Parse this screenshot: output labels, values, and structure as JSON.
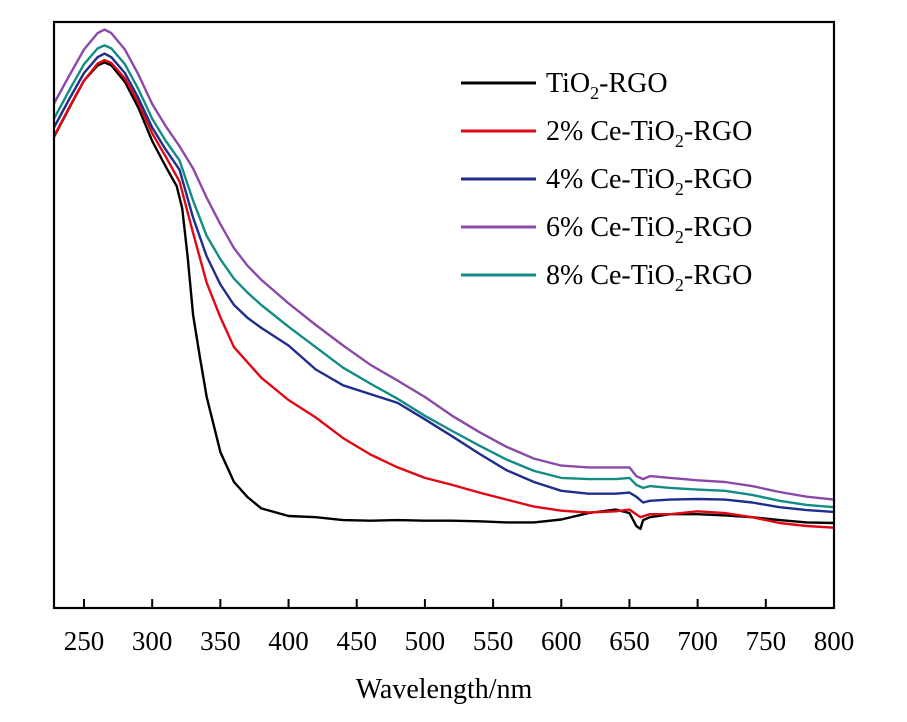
{
  "chart_data": {
    "type": "line",
    "xlabel": "Wavelength/nm",
    "ylabel": "",
    "xlim": [
      228,
      800
    ],
    "ylim": [
      0,
      1
    ],
    "xticks": [
      250,
      300,
      350,
      400,
      450,
      500,
      550,
      600,
      650,
      700,
      750,
      800
    ],
    "xtick_labels": [
      "250",
      "300",
      "350",
      "400",
      "450",
      "500",
      "550",
      "600",
      "650",
      "700",
      "750",
      "800"
    ],
    "y_tick_labels_shown": false,
    "grid": false,
    "legend_position": "top-right",
    "series": [
      {
        "name": "TiO2-RGO",
        "label_main": "TiO",
        "label_sub": "2",
        "label_tail": "-RGO",
        "color": "#000000",
        "points": [
          [
            228,
            0.804
          ],
          [
            240,
            0.857
          ],
          [
            250,
            0.9
          ],
          [
            260,
            0.926
          ],
          [
            265,
            0.931
          ],
          [
            270,
            0.926
          ],
          [
            280,
            0.898
          ],
          [
            290,
            0.853
          ],
          [
            300,
            0.797
          ],
          [
            310,
            0.753
          ],
          [
            318,
            0.72
          ],
          [
            322,
            0.682
          ],
          [
            326,
            0.6
          ],
          [
            330,
            0.5
          ],
          [
            335,
            0.428
          ],
          [
            340,
            0.36
          ],
          [
            350,
            0.266
          ],
          [
            360,
            0.215
          ],
          [
            370,
            0.189
          ],
          [
            380,
            0.17
          ],
          [
            400,
            0.157
          ],
          [
            420,
            0.155
          ],
          [
            440,
            0.15
          ],
          [
            460,
            0.149
          ],
          [
            480,
            0.15
          ],
          [
            500,
            0.149
          ],
          [
            520,
            0.149
          ],
          [
            540,
            0.148
          ],
          [
            560,
            0.146
          ],
          [
            580,
            0.146
          ],
          [
            600,
            0.151
          ],
          [
            620,
            0.162
          ],
          [
            640,
            0.168
          ],
          [
            650,
            0.162
          ],
          [
            655,
            0.14
          ],
          [
            658,
            0.135
          ],
          [
            660,
            0.15
          ],
          [
            665,
            0.155
          ],
          [
            680,
            0.16
          ],
          [
            700,
            0.16
          ],
          [
            720,
            0.158
          ],
          [
            740,
            0.155
          ],
          [
            760,
            0.15
          ],
          [
            780,
            0.146
          ],
          [
            800,
            0.145
          ]
        ]
      },
      {
        "name": "2% Ce-TiO2-RGO",
        "label_main": "2% Ce-TiO",
        "label_sub": "2",
        "label_tail": "-RGO",
        "color": "#e30613",
        "points": [
          [
            228,
            0.805
          ],
          [
            240,
            0.858
          ],
          [
            250,
            0.9
          ],
          [
            260,
            0.929
          ],
          [
            265,
            0.935
          ],
          [
            270,
            0.93
          ],
          [
            280,
            0.904
          ],
          [
            290,
            0.862
          ],
          [
            300,
            0.81
          ],
          [
            310,
            0.77
          ],
          [
            320,
            0.728
          ],
          [
            330,
            0.64
          ],
          [
            340,
            0.555
          ],
          [
            350,
            0.496
          ],
          [
            360,
            0.445
          ],
          [
            380,
            0.393
          ],
          [
            400,
            0.355
          ],
          [
            420,
            0.325
          ],
          [
            440,
            0.29
          ],
          [
            460,
            0.262
          ],
          [
            480,
            0.24
          ],
          [
            500,
            0.222
          ],
          [
            520,
            0.21
          ],
          [
            540,
            0.197
          ],
          [
            560,
            0.185
          ],
          [
            580,
            0.173
          ],
          [
            600,
            0.166
          ],
          [
            620,
            0.163
          ],
          [
            640,
            0.165
          ],
          [
            650,
            0.168
          ],
          [
            658,
            0.155
          ],
          [
            665,
            0.16
          ],
          [
            680,
            0.16
          ],
          [
            700,
            0.165
          ],
          [
            720,
            0.162
          ],
          [
            740,
            0.155
          ],
          [
            760,
            0.145
          ],
          [
            780,
            0.14
          ],
          [
            800,
            0.137
          ]
        ]
      },
      {
        "name": "4% Ce-TiO2-RGO",
        "label_main": "4% Ce-TiO",
        "label_sub": "2",
        "label_tail": "-RGO",
        "color": "#1f2d8c",
        "points": [
          [
            228,
            0.82
          ],
          [
            240,
            0.872
          ],
          [
            250,
            0.913
          ],
          [
            260,
            0.94
          ],
          [
            265,
            0.946
          ],
          [
            270,
            0.94
          ],
          [
            280,
            0.913
          ],
          [
            290,
            0.87
          ],
          [
            300,
            0.82
          ],
          [
            310,
            0.782
          ],
          [
            320,
            0.748
          ],
          [
            330,
            0.666
          ],
          [
            340,
            0.6
          ],
          [
            350,
            0.552
          ],
          [
            360,
            0.517
          ],
          [
            370,
            0.495
          ],
          [
            380,
            0.478
          ],
          [
            400,
            0.448
          ],
          [
            420,
            0.407
          ],
          [
            440,
            0.38
          ],
          [
            460,
            0.365
          ],
          [
            480,
            0.35
          ],
          [
            500,
            0.322
          ],
          [
            520,
            0.293
          ],
          [
            540,
            0.263
          ],
          [
            560,
            0.235
          ],
          [
            580,
            0.215
          ],
          [
            600,
            0.2
          ],
          [
            620,
            0.195
          ],
          [
            640,
            0.195
          ],
          [
            650,
            0.197
          ],
          [
            655,
            0.19
          ],
          [
            660,
            0.18
          ],
          [
            665,
            0.183
          ],
          [
            680,
            0.185
          ],
          [
            700,
            0.186
          ],
          [
            720,
            0.185
          ],
          [
            740,
            0.18
          ],
          [
            760,
            0.172
          ],
          [
            780,
            0.167
          ],
          [
            800,
            0.164
          ]
        ]
      },
      {
        "name": "6% Ce-TiO2-RGO",
        "label_main": "6% Ce-TiO",
        "label_sub": "2",
        "label_tail": "-RGO",
        "color": "#8b49a8",
        "points": [
          [
            228,
            0.861
          ],
          [
            240,
            0.912
          ],
          [
            250,
            0.953
          ],
          [
            260,
            0.981
          ],
          [
            265,
            0.987
          ],
          [
            270,
            0.981
          ],
          [
            280,
            0.953
          ],
          [
            290,
            0.91
          ],
          [
            300,
            0.86
          ],
          [
            310,
            0.822
          ],
          [
            320,
            0.788
          ],
          [
            330,
            0.75
          ],
          [
            340,
            0.7
          ],
          [
            350,
            0.655
          ],
          [
            360,
            0.614
          ],
          [
            370,
            0.584
          ],
          [
            380,
            0.56
          ],
          [
            400,
            0.52
          ],
          [
            420,
            0.483
          ],
          [
            440,
            0.448
          ],
          [
            460,
            0.415
          ],
          [
            480,
            0.388
          ],
          [
            500,
            0.36
          ],
          [
            520,
            0.328
          ],
          [
            540,
            0.3
          ],
          [
            560,
            0.275
          ],
          [
            580,
            0.255
          ],
          [
            600,
            0.243
          ],
          [
            620,
            0.24
          ],
          [
            640,
            0.24
          ],
          [
            650,
            0.24
          ],
          [
            655,
            0.225
          ],
          [
            660,
            0.22
          ],
          [
            665,
            0.225
          ],
          [
            680,
            0.222
          ],
          [
            700,
            0.218
          ],
          [
            720,
            0.215
          ],
          [
            740,
            0.208
          ],
          [
            760,
            0.198
          ],
          [
            780,
            0.19
          ],
          [
            800,
            0.185
          ]
        ]
      },
      {
        "name": "8% Ce-TiO2-RGO",
        "label_main": "8% Ce-TiO",
        "label_sub": "2",
        "label_tail": "-RGO",
        "color": "#138c86",
        "points": [
          [
            228,
            0.835
          ],
          [
            240,
            0.887
          ],
          [
            250,
            0.928
          ],
          [
            260,
            0.955
          ],
          [
            265,
            0.96
          ],
          [
            270,
            0.955
          ],
          [
            280,
            0.928
          ],
          [
            290,
            0.885
          ],
          [
            300,
            0.835
          ],
          [
            310,
            0.797
          ],
          [
            320,
            0.764
          ],
          [
            330,
            0.695
          ],
          [
            340,
            0.635
          ],
          [
            350,
            0.595
          ],
          [
            360,
            0.562
          ],
          [
            370,
            0.538
          ],
          [
            380,
            0.517
          ],
          [
            400,
            0.48
          ],
          [
            420,
            0.445
          ],
          [
            440,
            0.41
          ],
          [
            460,
            0.383
          ],
          [
            480,
            0.357
          ],
          [
            500,
            0.328
          ],
          [
            520,
            0.302
          ],
          [
            540,
            0.277
          ],
          [
            560,
            0.253
          ],
          [
            580,
            0.234
          ],
          [
            600,
            0.222
          ],
          [
            620,
            0.22
          ],
          [
            640,
            0.22
          ],
          [
            650,
            0.222
          ],
          [
            655,
            0.21
          ],
          [
            660,
            0.205
          ],
          [
            665,
            0.208
          ],
          [
            680,
            0.205
          ],
          [
            700,
            0.202
          ],
          [
            720,
            0.2
          ],
          [
            740,
            0.193
          ],
          [
            760,
            0.183
          ],
          [
            780,
            0.176
          ],
          [
            800,
            0.172
          ]
        ]
      }
    ]
  }
}
